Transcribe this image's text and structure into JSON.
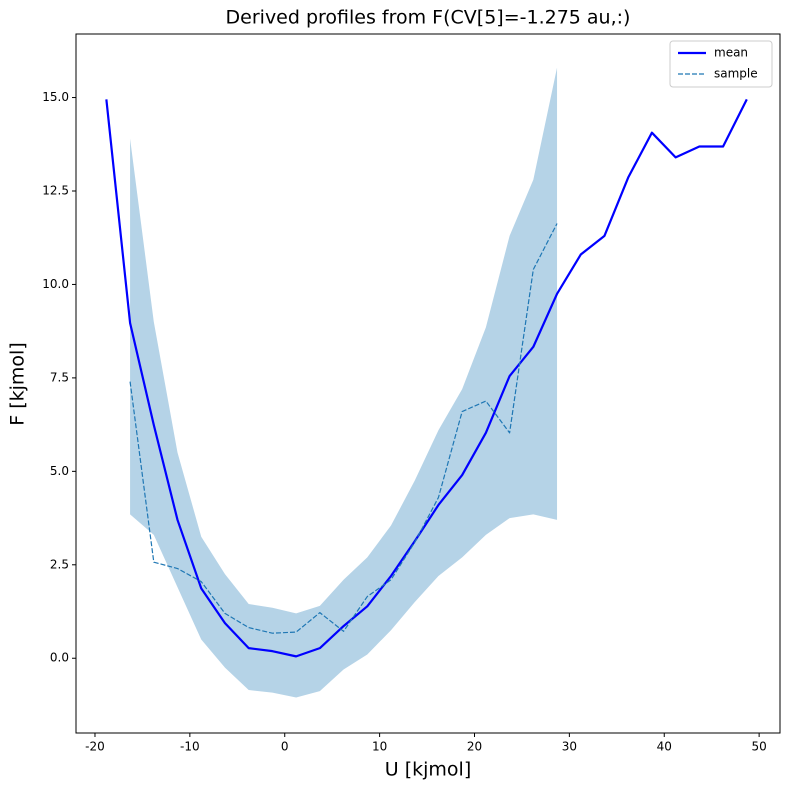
{
  "chart_data": {
    "type": "line",
    "title": "Derived profiles from F(CV[5]=-1.275 au,:)",
    "x_label": "U [kjmol]",
    "y_label": "F [kjmol]",
    "xlim": [
      -22.0,
      52.2
    ],
    "ylim": [
      -2.0,
      16.7
    ],
    "xticks": [
      -20,
      -10,
      0,
      10,
      20,
      30,
      40,
      50
    ],
    "yticks": [
      {
        "value": 0,
        "label": "0.0"
      },
      2.5,
      {
        "value": 5,
        "label": "5.0"
      },
      7.5,
      {
        "value": 10,
        "label": "10.0"
      },
      12.5,
      {
        "value": 15,
        "label": "15.0"
      }
    ],
    "legend": "upper right",
    "series": [
      {
        "name": "mean",
        "color": "#0000ff",
        "style": "solid",
        "x": [
          -18.8,
          -16.3,
          -13.8,
          -11.3,
          -8.8,
          -6.3,
          -3.8,
          -1.3,
          1.2,
          3.7,
          6.2,
          8.7,
          11.2,
          13.7,
          16.2,
          18.7,
          21.2,
          23.7,
          26.2,
          28.7,
          31.2,
          33.7,
          36.2,
          38.7,
          41.2,
          43.7,
          46.2,
          48.7
        ],
        "values": [
          14.95,
          8.97,
          6.24,
          3.7,
          1.87,
          0.94,
          0.27,
          0.19,
          0.05,
          0.27,
          0.86,
          1.39,
          2.2,
          3.13,
          4.1,
          4.9,
          6.03,
          7.55,
          8.33,
          9.75,
          10.8,
          11.3,
          12.86,
          14.06,
          13.4,
          13.69,
          13.69,
          14.95
        ]
      },
      {
        "name": "sample",
        "color": "#1f77b4",
        "style": "dashed",
        "x": [
          -16.3,
          -13.8,
          -11.3,
          -8.8,
          -6.3,
          -3.8,
          -1.3,
          1.2,
          3.7,
          6.2,
          8.7,
          11.2,
          13.7,
          16.2,
          18.7,
          21.2,
          23.7,
          26.2,
          28.7
        ],
        "values": [
          7.4,
          2.57,
          2.4,
          2.05,
          1.2,
          0.82,
          0.67,
          0.7,
          1.22,
          0.72,
          1.65,
          2.1,
          3.1,
          4.3,
          6.6,
          6.88,
          6.03,
          10.4,
          11.63
        ]
      }
    ],
    "band": {
      "color": "#b5d3e7",
      "x": [
        -16.3,
        -13.8,
        -11.3,
        -8.8,
        -6.3,
        -3.8,
        -1.3,
        1.2,
        3.7,
        6.2,
        8.7,
        11.2,
        13.7,
        16.2,
        18.7,
        21.2,
        23.7,
        26.2,
        28.7
      ],
      "upper": [
        13.9,
        9.0,
        5.5,
        3.25,
        2.25,
        1.45,
        1.35,
        1.2,
        1.4,
        2.1,
        2.7,
        3.55,
        4.75,
        6.1,
        7.2,
        8.85,
        11.3,
        12.8,
        15.8
      ],
      "lower": [
        3.85,
        3.3,
        1.9,
        0.5,
        -0.25,
        -0.85,
        -0.92,
        -1.05,
        -0.88,
        -0.3,
        0.1,
        0.75,
        1.5,
        2.2,
        2.7,
        3.3,
        3.75,
        3.85,
        3.7
      ]
    }
  }
}
